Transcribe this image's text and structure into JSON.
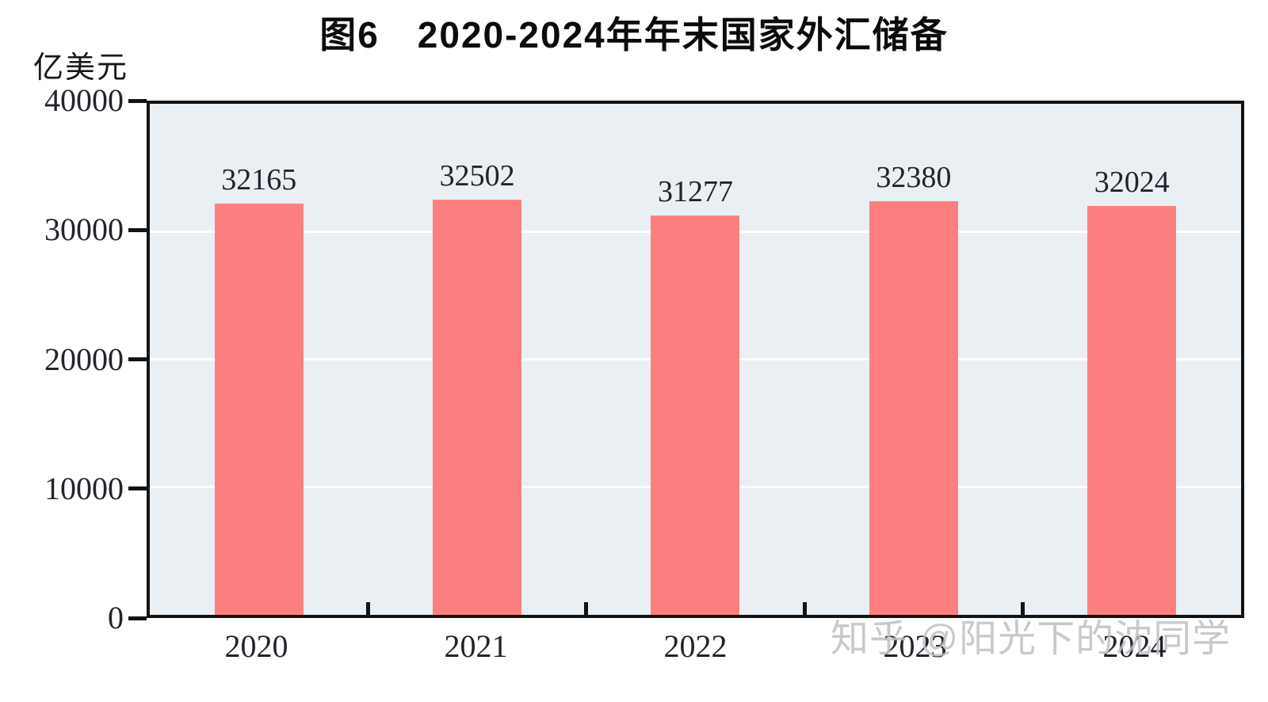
{
  "figure": {
    "watermark": "知乎 @阳光下的沈同学"
  },
  "colors": {
    "bar": "#fb7f7f",
    "plot_background": "#e9eff3",
    "gridline": "#ffffff",
    "axis": "#131313",
    "tick_text": "#23232b",
    "title_text": "#0b0b0b",
    "watermark_text": "#bec1c4"
  },
  "chart_data": {
    "type": "bar",
    "title": "图6　2020-2024年年末国家外汇储备",
    "ylabel": "亿美元",
    "xlabel": "",
    "categories": [
      "2020",
      "2021",
      "2022",
      "2023",
      "2024"
    ],
    "values": [
      32165,
      32502,
      31277,
      32380,
      32024
    ],
    "data_labels": [
      "32165",
      "32502",
      "31277",
      "32380",
      "32024"
    ],
    "ylim": [
      0,
      40000
    ],
    "yticks": [
      0,
      10000,
      20000,
      30000,
      40000
    ],
    "grid": true,
    "gridline_values": [
      10000,
      20000,
      30000
    ],
    "legend_position": "none"
  }
}
